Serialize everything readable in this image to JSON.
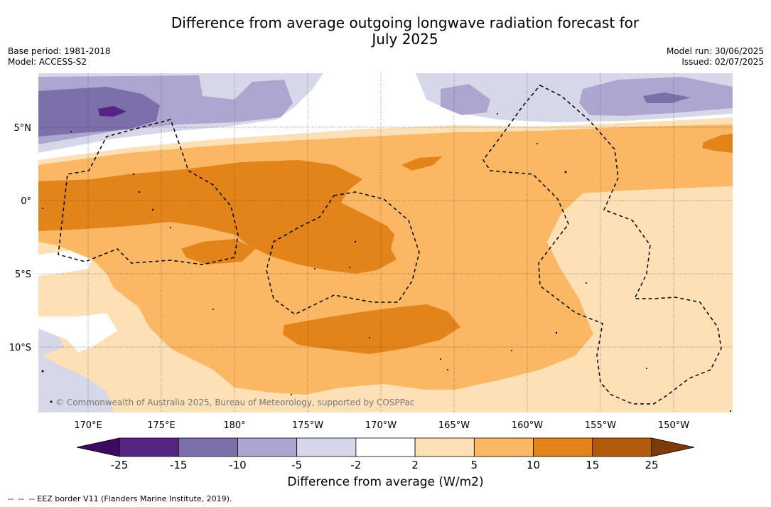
{
  "title_line1": "Difference from average outgoing longwave radiation forecast for",
  "title_line2": "July 2025",
  "base_period": "Base period: 1981-2018",
  "model": "Model: ACCESS-S2",
  "model_run": "Model run: 30/06/2025",
  "issued": "Issued: 02/07/2025",
  "copyright": "© Commonwealth of Australia 2025, Bureau of Meteorology, supported by COSPPac",
  "lat_labels": [
    "5°N",
    "0°",
    "5°S",
    "10°S"
  ],
  "lon_labels": [
    "170°E",
    "175°E",
    "180°",
    "175°W",
    "170°W",
    "165°W",
    "160°W",
    "155°W",
    "150°W"
  ],
  "colorbar": {
    "label": "Difference from average (W/m2)",
    "ticks": [
      "-25",
      "-15",
      "-10",
      "-5",
      "-2",
      "2",
      "5",
      "10",
      "15",
      "25"
    ],
    "colors": [
      "#3f0a5e",
      "#562584",
      "#7d6faa",
      "#ada6d0",
      "#d6d7e9",
      "#ffffff",
      "#fde0b6",
      "#fbb763",
      "#e2841a",
      "#b15b0c",
      "#7e3a08"
    ]
  },
  "footer": "--  --  -- EEZ border V11 (Flanders Marine Institute, 2019)."
}
